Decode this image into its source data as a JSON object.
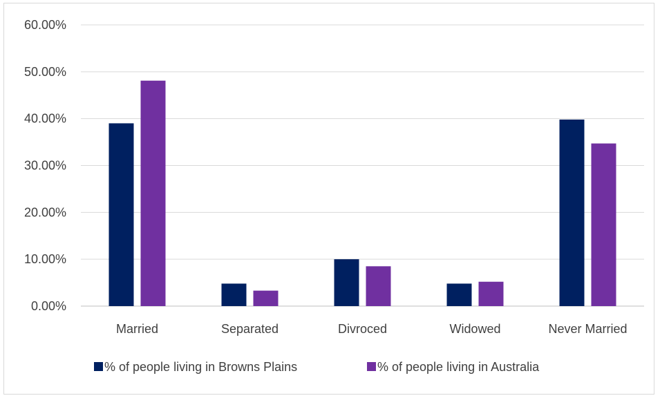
{
  "chart_data": {
    "type": "bar",
    "title": "",
    "xlabel": "",
    "ylabel": "",
    "categories": [
      "Married",
      "Separated",
      "Divroced",
      "Widowed",
      "Never Married"
    ],
    "series": [
      {
        "name": "% of people living in Browns Plains",
        "color": "#002060",
        "values": [
          0.39,
          0.048,
          0.1,
          0.048,
          0.398
        ]
      },
      {
        "name": "% of people living in Australia",
        "color": "#7030a0",
        "values": [
          0.481,
          0.033,
          0.085,
          0.052,
          0.347
        ]
      }
    ],
    "ylim": [
      0,
      0.6
    ],
    "yticks": [
      0,
      0.1,
      0.2,
      0.3,
      0.4,
      0.5,
      0.6
    ],
    "ytick_labels": [
      "0.00%",
      "10.00%",
      "20.00%",
      "30.00%",
      "40.00%",
      "50.00%",
      "60.00%"
    ],
    "grid": true,
    "legend_position": "bottom"
  }
}
